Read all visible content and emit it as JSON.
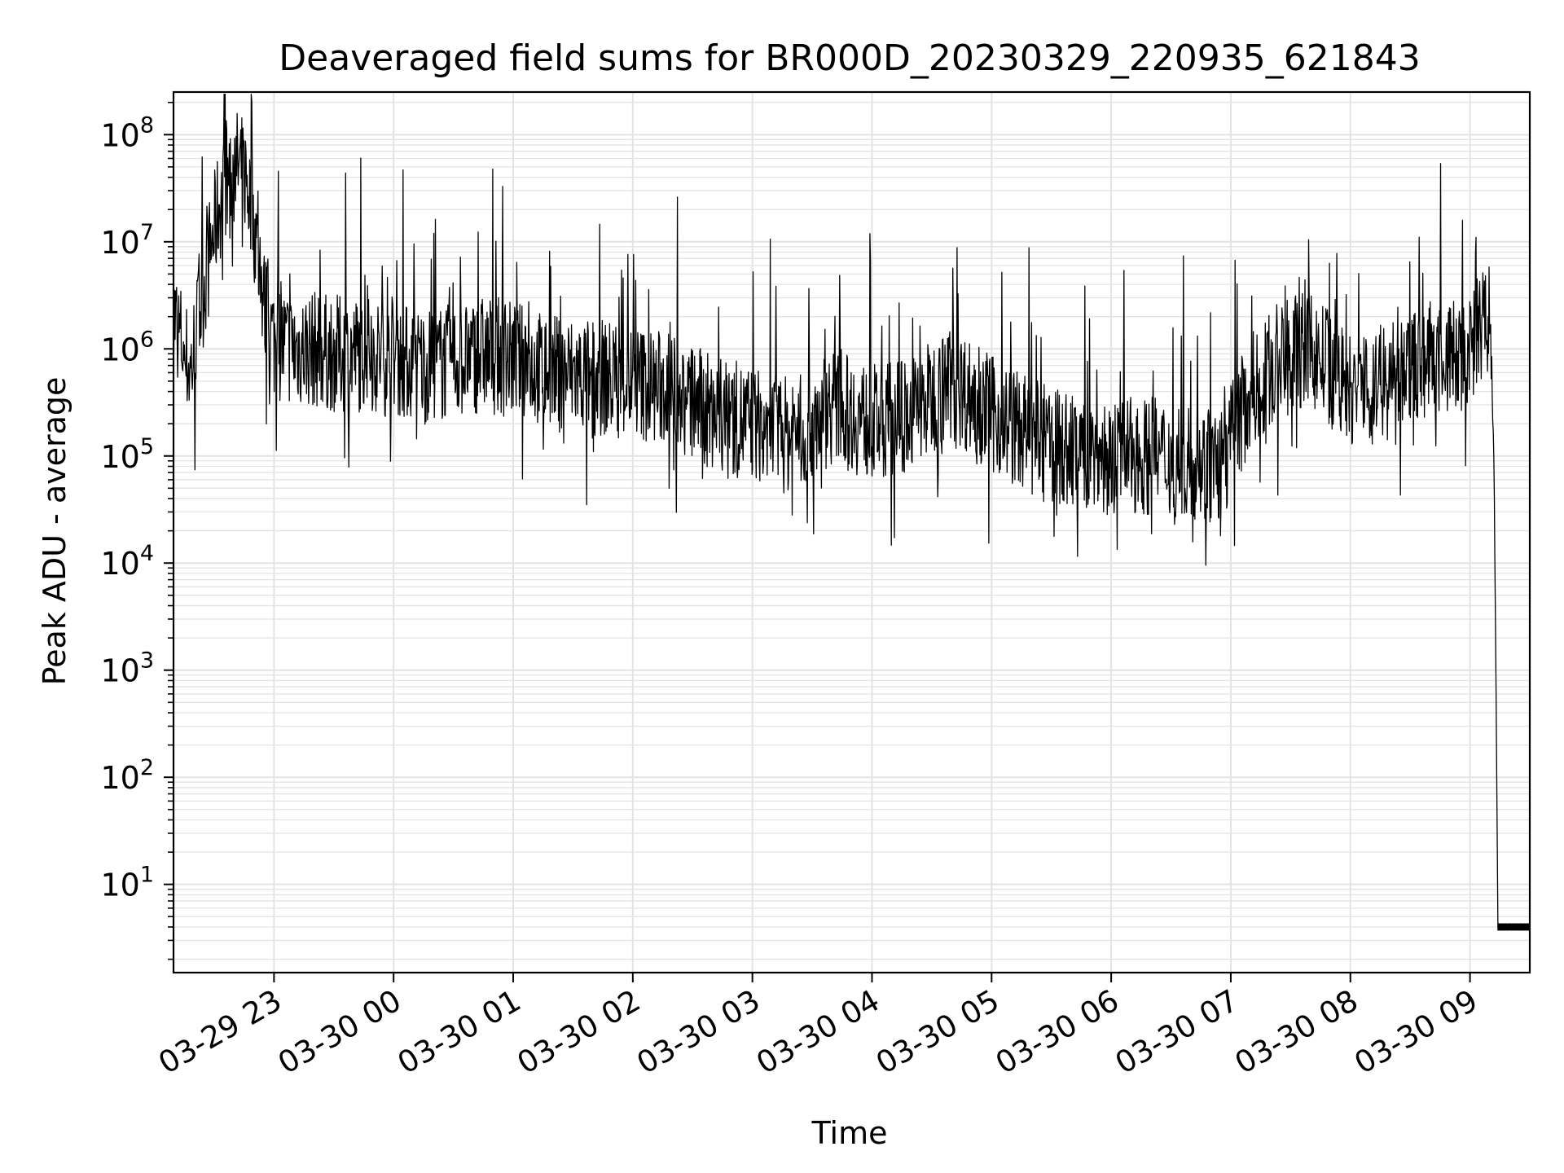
{
  "chart_data": {
    "type": "line",
    "title": "Deaveraged field sums for BR000D_20230329_220935_621843",
    "xlabel": "Time",
    "ylabel": "Peak ADU - average",
    "yscale": "log",
    "ylim": [
      1.5,
      250000000
    ],
    "xlim": [
      "2023-03-29 22:09:35",
      "2023-03-30 09:30:00"
    ],
    "grid": true,
    "colors": {
      "line": "#000000",
      "grid": "#e3e3e3",
      "axes": "#000000"
    },
    "x_ticks": [
      {
        "value": "2023-03-29 23:00",
        "label": "03-29 23"
      },
      {
        "value": "2023-03-30 00:00",
        "label": "03-30 00"
      },
      {
        "value": "2023-03-30 01:00",
        "label": "03-30 01"
      },
      {
        "value": "2023-03-30 02:00",
        "label": "03-30 02"
      },
      {
        "value": "2023-03-30 03:00",
        "label": "03-30 03"
      },
      {
        "value": "2023-03-30 04:00",
        "label": "03-30 04"
      },
      {
        "value": "2023-03-30 05:00",
        "label": "03-30 05"
      },
      {
        "value": "2023-03-30 06:00",
        "label": "03-30 06"
      },
      {
        "value": "2023-03-30 07:00",
        "label": "03-30 07"
      },
      {
        "value": "2023-03-30 08:00",
        "label": "03-30 08"
      },
      {
        "value": "2023-03-30 09:00",
        "label": "03-30 09"
      }
    ],
    "y_ticks": [
      {
        "value": 10,
        "base": "10",
        "exp": "1"
      },
      {
        "value": 100,
        "base": "10",
        "exp": "2"
      },
      {
        "value": 1000,
        "base": "10",
        "exp": "3"
      },
      {
        "value": 10000,
        "base": "10",
        "exp": "4"
      },
      {
        "value": 100000,
        "base": "10",
        "exp": "5"
      },
      {
        "value": 1000000,
        "base": "10",
        "exp": "6"
      },
      {
        "value": 10000000,
        "base": "10",
        "exp": "7"
      },
      {
        "value": 100000000,
        "base": "10",
        "exp": "8"
      }
    ],
    "series": [
      {
        "x": [
          "2023-03-29 22:10",
          "2023-03-29 22:18",
          "2023-03-29 22:25",
          "2023-03-29 22:32",
          "2023-03-29 22:37",
          "2023-03-29 22:42",
          "2023-03-29 22:46",
          "2023-03-29 22:50",
          "2023-03-29 22:53",
          "2023-03-29 22:56",
          "2023-03-29 23:00",
          "2023-03-29 23:10",
          "2023-03-29 23:20",
          "2023-03-29 23:30",
          "2023-03-29 23:45",
          "2023-03-30 00:00",
          "2023-03-30 00:15",
          "2023-03-30 00:30",
          "2023-03-30 00:45",
          "2023-03-30 01:00",
          "2023-03-30 01:20",
          "2023-03-30 01:40",
          "2023-03-30 02:00",
          "2023-03-30 02:20",
          "2023-03-30 02:40",
          "2023-03-30 03:00",
          "2023-03-30 03:20",
          "2023-03-30 03:40",
          "2023-03-30 04:00",
          "2023-03-30 04:20",
          "2023-03-30 04:40",
          "2023-03-30 05:00",
          "2023-03-30 05:20",
          "2023-03-30 05:40",
          "2023-03-30 06:00",
          "2023-03-30 06:20",
          "2023-03-30 06:40",
          "2023-03-30 06:55",
          "2023-03-30 07:10",
          "2023-03-30 07:25",
          "2023-03-30 07:40",
          "2023-03-30 08:00",
          "2023-03-30 08:20",
          "2023-03-30 08:40",
          "2023-03-30 09:00",
          "2023-03-30 09:05",
          "2023-03-30 09:08",
          "2023-03-30 09:10",
          "2023-03-30 09:12",
          "2023-03-30 09:13",
          "2023-03-30 09:14",
          "2023-03-30 09:20",
          "2023-03-30 09:30"
        ],
        "values": [
          2000000,
          600000,
          4000000,
          20000000,
          40000000,
          50000000,
          40000000,
          15000000,
          5000000,
          2000000,
          1200000,
          1000000,
          1000000,
          900000,
          900000,
          800000,
          700000,
          750000,
          900000,
          800000,
          600000,
          550000,
          500000,
          400000,
          250000,
          200000,
          150000,
          300000,
          200000,
          250000,
          500000,
          250000,
          150000,
          110000,
          100000,
          100000,
          90000,
          80000,
          400000,
          800000,
          1000000,
          400000,
          500000,
          800000,
          900000,
          1500000,
          2000000,
          1700000,
          100000,
          1000,
          4,
          4,
          4
        ]
      }
    ]
  }
}
